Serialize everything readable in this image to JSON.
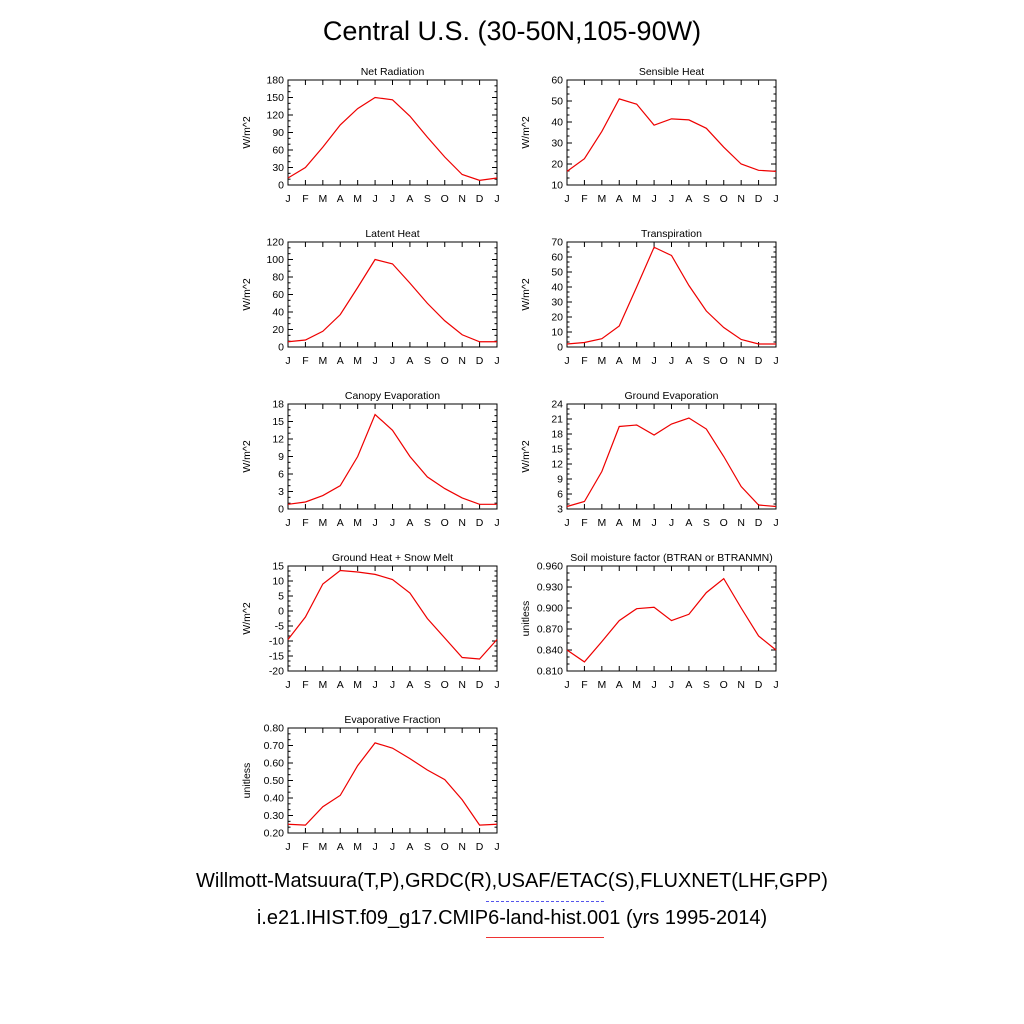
{
  "title": "Central U.S. (30-50N,105-90W)",
  "footer": {
    "observations": "Willmott-Matsuura(T,P),GRDC(R),USAF/ETAC(S),FLUXNET(LHF,GPP)",
    "model": "i.e21.IHIST.f09_g17.CMIP6-land-hist.001 (yrs 1995-2014)",
    "observations_line_color": "#5555ee",
    "model_line_color": "#ee0000"
  },
  "chart_data": [
    {
      "type": "line",
      "title": "Net Radiation",
      "ylabel": "W/m^2",
      "categories": [
        "J",
        "F",
        "M",
        "A",
        "M",
        "J",
        "J",
        "A",
        "S",
        "O",
        "N",
        "D",
        "J"
      ],
      "ylim": [
        0,
        180
      ],
      "yticks": [
        "0",
        "30",
        "60",
        "90",
        "120",
        "150",
        "180"
      ],
      "series": [
        {
          "color": "#ee0000",
          "values": [
            12,
            30,
            65,
            103,
            131,
            150,
            146,
            118,
            82,
            48,
            18,
            8,
            12
          ]
        }
      ]
    },
    {
      "type": "line",
      "title": "Sensible Heat",
      "ylabel": "W/m^2",
      "categories": [
        "J",
        "F",
        "M",
        "A",
        "M",
        "J",
        "J",
        "A",
        "S",
        "O",
        "N",
        "D",
        "J"
      ],
      "ylim": [
        10,
        60
      ],
      "yticks": [
        "10",
        "20",
        "30",
        "40",
        "50",
        "60"
      ],
      "series": [
        {
          "color": "#ee0000",
          "values": [
            16.5,
            22.5,
            35.5,
            51,
            48.5,
            38.5,
            41.5,
            41,
            37,
            28,
            20,
            17,
            16.5
          ]
        }
      ]
    },
    {
      "type": "line",
      "title": "Latent Heat",
      "ylabel": "W/m^2",
      "categories": [
        "J",
        "F",
        "M",
        "A",
        "M",
        "J",
        "J",
        "A",
        "S",
        "O",
        "N",
        "D",
        "J"
      ],
      "ylim": [
        0,
        120
      ],
      "yticks": [
        "0",
        "20",
        "40",
        "60",
        "80",
        "100",
        "120"
      ],
      "series": [
        {
          "color": "#ee0000",
          "values": [
            6,
            8,
            18,
            37,
            68,
            100,
            95,
            73,
            50,
            30,
            14,
            6,
            6
          ]
        }
      ]
    },
    {
      "type": "line",
      "title": "Transpiration",
      "ylabel": "W/m^2",
      "categories": [
        "J",
        "F",
        "M",
        "A",
        "M",
        "J",
        "J",
        "A",
        "S",
        "O",
        "N",
        "D",
        "J"
      ],
      "ylim": [
        0,
        70
      ],
      "yticks": [
        "0",
        "10",
        "20",
        "30",
        "40",
        "50",
        "60",
        "70"
      ],
      "series": [
        {
          "color": "#ee0000",
          "values": [
            2,
            3,
            5.5,
            14,
            40,
            66.5,
            61,
            41,
            24,
            13,
            5,
            2,
            2
          ]
        }
      ]
    },
    {
      "type": "line",
      "title": "Canopy Evaporation",
      "ylabel": "W/m^2",
      "categories": [
        "J",
        "F",
        "M",
        "A",
        "M",
        "J",
        "J",
        "A",
        "S",
        "O",
        "N",
        "D",
        "J"
      ],
      "ylim": [
        0,
        18
      ],
      "yticks": [
        "0",
        "3",
        "6",
        "9",
        "12",
        "15",
        "18"
      ],
      "series": [
        {
          "color": "#ee0000",
          "values": [
            0.8,
            1.2,
            2.3,
            4,
            9,
            16.2,
            13.5,
            9,
            5.5,
            3.5,
            1.9,
            0.8,
            0.8
          ]
        }
      ]
    },
    {
      "type": "line",
      "title": "Ground Evaporation",
      "ylabel": "W/m^2",
      "categories": [
        "J",
        "F",
        "M",
        "A",
        "M",
        "J",
        "J",
        "A",
        "S",
        "O",
        "N",
        "D",
        "J"
      ],
      "ylim": [
        3,
        24
      ],
      "yticks": [
        "3",
        "6",
        "9",
        "12",
        "15",
        "18",
        "21",
        "24"
      ],
      "series": [
        {
          "color": "#ee0000",
          "values": [
            3.5,
            4.5,
            10.5,
            19.5,
            19.8,
            17.8,
            20,
            21.2,
            19,
            13.5,
            7.5,
            3.8,
            3.5
          ]
        }
      ]
    },
    {
      "type": "line",
      "title": "Ground Heat + Snow Melt",
      "ylabel": "W/m^2",
      "categories": [
        "J",
        "F",
        "M",
        "A",
        "M",
        "J",
        "J",
        "A",
        "S",
        "O",
        "N",
        "D",
        "J"
      ],
      "ylim": [
        -20,
        15
      ],
      "yticks": [
        "-20",
        "-15",
        "-10",
        "-5",
        "0",
        "5",
        "10",
        "15"
      ],
      "series": [
        {
          "color": "#ee0000",
          "values": [
            -9.5,
            -2,
            9,
            13.5,
            13,
            12.2,
            10.5,
            6,
            -2.5,
            -9,
            -15.5,
            -16,
            -9.5
          ]
        }
      ]
    },
    {
      "type": "line",
      "title": "Soil moisture factor (BTRAN or BTRANMN)",
      "ylabel": "unitless",
      "categories": [
        "J",
        "F",
        "M",
        "A",
        "M",
        "J",
        "J",
        "A",
        "S",
        "O",
        "N",
        "D",
        "J"
      ],
      "ylim": [
        0.81,
        0.96
      ],
      "yticks": [
        "0.810",
        "0.840",
        "0.870",
        "0.900",
        "0.930",
        "0.960"
      ],
      "series": [
        {
          "color": "#ee0000",
          "values": [
            0.84,
            0.823,
            0.852,
            0.882,
            0.899,
            0.901,
            0.882,
            0.891,
            0.922,
            0.942,
            0.9,
            0.86,
            0.84
          ]
        }
      ]
    },
    {
      "type": "line",
      "title": "Evaporative Fraction",
      "ylabel": "unitless",
      "categories": [
        "J",
        "F",
        "M",
        "A",
        "M",
        "J",
        "J",
        "A",
        "S",
        "O",
        "N",
        "D",
        "J"
      ],
      "ylim": [
        0.2,
        0.8
      ],
      "yticks": [
        "0.20",
        "0.30",
        "0.40",
        "0.50",
        "0.60",
        "0.70",
        "0.80"
      ],
      "series": [
        {
          "color": "#ee0000",
          "values": [
            0.25,
            0.245,
            0.35,
            0.415,
            0.585,
            0.715,
            0.685,
            0.625,
            0.56,
            0.505,
            0.39,
            0.245,
            0.25
          ]
        }
      ]
    }
  ]
}
